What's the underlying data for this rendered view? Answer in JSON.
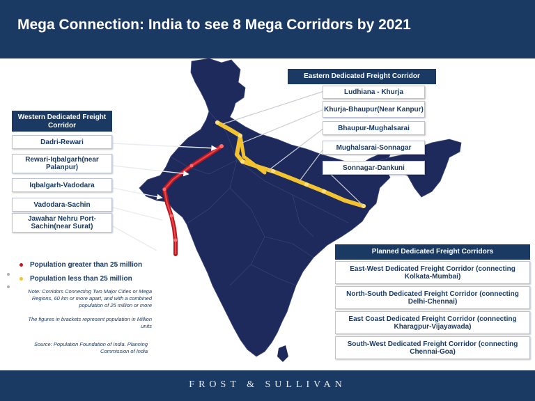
{
  "title": "Mega Connection: India to see 8 Mega Corridors by 2021",
  "footer_brand": "FROST & SULLIVAN",
  "colors": {
    "header_bg": "#1b3a63",
    "map_fill": "#1f2a5c",
    "western_corridor": "#c0161d",
    "eastern_corridor": "#f2c230"
  },
  "western": {
    "header": "Western Dedicated Freight Corridor",
    "segments": [
      "Dadri-Rewari",
      "Rewari-Iqbalgarh(near Palanpur)",
      "Iqbalgarh-Vadodara",
      "Vadodara-Sachin",
      "Jawahar Nehru Port-Sachin(near Surat)"
    ]
  },
  "eastern": {
    "header": "Eastern Dedicated Freight Corridor",
    "segments": [
      "Ludhiana - Khurja",
      "Khurja-Bhaupur(Near Kanpur)",
      "Bhaupur-Mughalsarai",
      "Mughalsarai-Sonnagar",
      "Sonnagar-Dankuni"
    ]
  },
  "planned": {
    "header": "Planned Dedicated Freight Corridors",
    "items": [
      "East-West Dedicated Freight Corridor (connecting Kolkata-Mumbai)",
      "North-South Dedicated Freight Corridor (connecting Delhi-Chennai)",
      "East Coast Dedicated Freight Corridor (connecting Kharagpur-Vijayawada)",
      "South-West Dedicated Freight Corridor (connecting Chennai-Goa)"
    ]
  },
  "legend": {
    "red": "Population greater than 25 million",
    "yellow": "Population less than 25 million"
  },
  "notes": {
    "note1": "Note: Corridors Connecting Two Major Cities or Mega Regions, 60 km or more apart, and with a combined population of 25 million or more",
    "note2": "The figures in brackets represent population in Million units",
    "source": "Source: Population Foundation of India. Planning Commission of India"
  }
}
